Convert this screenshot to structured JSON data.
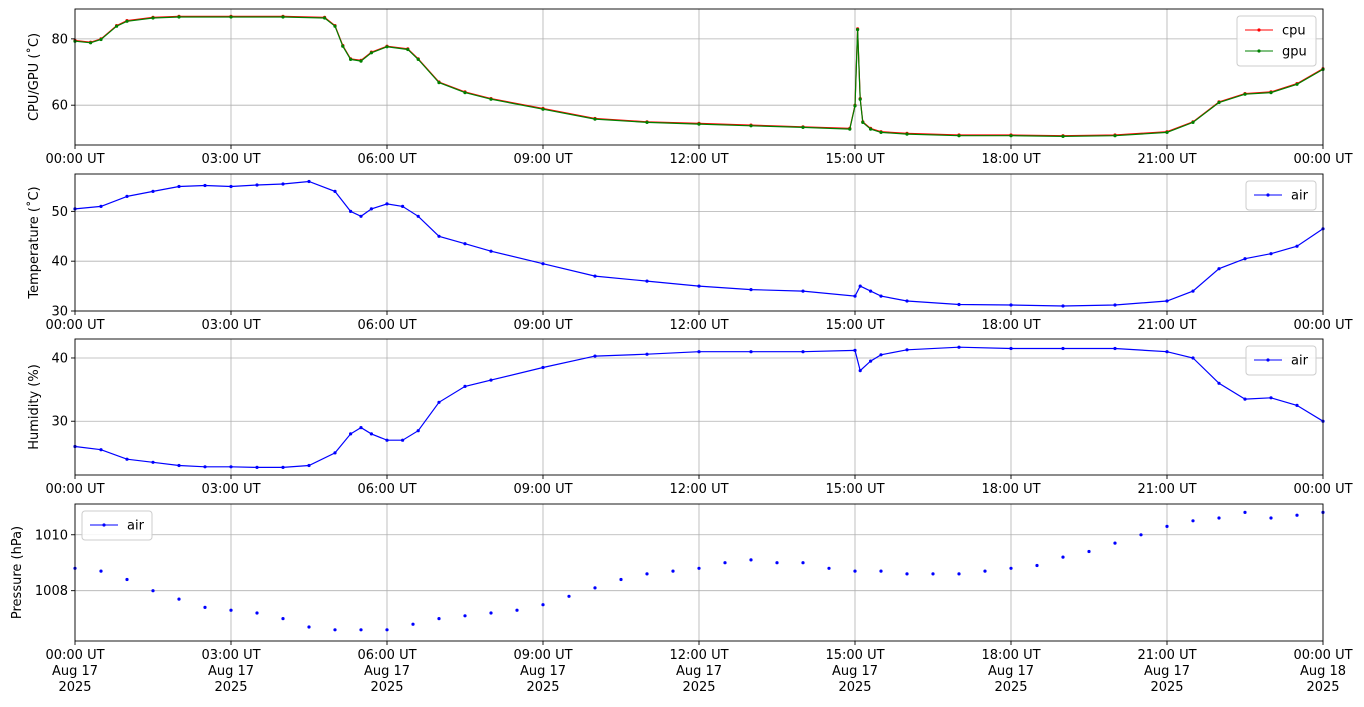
{
  "figure": {
    "x_axis": {
      "range_hours": [
        0,
        24
      ],
      "tick_hours": [
        0,
        3,
        6,
        9,
        12,
        15,
        18,
        21,
        24
      ],
      "tick_labels": [
        "00:00 UT",
        "03:00 UT",
        "06:00 UT",
        "09:00 UT",
        "12:00 UT",
        "15:00 UT",
        "18:00 UT",
        "21:00 UT",
        "00:00 UT"
      ],
      "bottom_date_lines": [
        "Aug 17",
        "Aug 17",
        "Aug 17",
        "Aug 17",
        "Aug 17",
        "Aug 17",
        "Aug 17",
        "Aug 17",
        "Aug 18"
      ],
      "bottom_year_lines": [
        "2025",
        "2025",
        "2025",
        "2025",
        "2025",
        "2025",
        "2025",
        "2025",
        "2025"
      ]
    }
  },
  "chart_data": [
    {
      "type": "line",
      "ylabel": "CPU/GPU (˚C)",
      "ylim": [
        48,
        89
      ],
      "yticks": [
        60,
        80
      ],
      "ytick_labels": [
        "60",
        "80"
      ],
      "grid": true,
      "legend": "top-right",
      "x_unit": "hours since 00:00 UT Aug 17 2025",
      "series": [
        {
          "name": "cpu",
          "color": "#ff0000",
          "x": [
            0,
            0.3,
            0.5,
            0.8,
            1.0,
            1.5,
            2.0,
            3.0,
            4.0,
            4.8,
            5.0,
            5.15,
            5.3,
            5.5,
            5.7,
            6.0,
            6.4,
            6.6,
            7.0,
            7.5,
            8.0,
            9.0,
            10.0,
            11.0,
            12.0,
            13.0,
            14.0,
            14.9,
            15.0,
            15.05,
            15.1,
            15.15,
            15.3,
            15.5,
            16.0,
            17.0,
            18.0,
            19.0,
            20.0,
            21.0,
            21.5,
            22.0,
            22.5,
            23.0,
            23.5,
            24.0
          ],
          "values": [
            79.5,
            79,
            80,
            84,
            85.5,
            86.5,
            86.8,
            86.8,
            86.8,
            86.5,
            84,
            78,
            74,
            73.5,
            76,
            77.8,
            77,
            74,
            67,
            64,
            62,
            59,
            56,
            55,
            54.5,
            54,
            53.5,
            53,
            60,
            83,
            62,
            55,
            53,
            52,
            51.5,
            51,
            51,
            50.8,
            51,
            52,
            55,
            61,
            63.5,
            64,
            66.5,
            71
          ]
        },
        {
          "name": "gpu",
          "color": "#008000",
          "x": [
            0,
            0.3,
            0.5,
            0.8,
            1.0,
            1.5,
            2.0,
            3.0,
            4.0,
            4.8,
            5.0,
            5.15,
            5.3,
            5.5,
            5.7,
            6.0,
            6.4,
            6.6,
            7.0,
            7.5,
            8.0,
            9.0,
            10.0,
            11.0,
            12.0,
            13.0,
            14.0,
            14.9,
            15.0,
            15.05,
            15.1,
            15.15,
            15.3,
            15.5,
            16.0,
            17.0,
            18.0,
            19.0,
            20.0,
            21.0,
            21.5,
            22.0,
            22.5,
            23.0,
            23.5,
            24.0
          ],
          "values": [
            79.3,
            78.8,
            79.8,
            83.8,
            85.3,
            86.3,
            86.6,
            86.6,
            86.6,
            86.3,
            83.8,
            77.8,
            73.8,
            73.3,
            75.8,
            77.6,
            76.8,
            73.8,
            66.8,
            63.8,
            61.8,
            58.8,
            55.8,
            54.8,
            54.3,
            53.8,
            53.3,
            52.8,
            59.8,
            82.8,
            61.8,
            54.8,
            52.8,
            51.8,
            51.3,
            50.8,
            50.8,
            50.6,
            50.8,
            51.8,
            54.8,
            60.8,
            63.3,
            63.8,
            66.3,
            70.8
          ]
        }
      ]
    },
    {
      "type": "line",
      "ylabel": "Temperature (˚C)",
      "ylim": [
        30,
        57.5
      ],
      "yticks": [
        30,
        40,
        50
      ],
      "ytick_labels": [
        "30",
        "40",
        "50"
      ],
      "grid": true,
      "legend": "top-right",
      "x_unit": "hours since 00:00 UT Aug 17 2025",
      "series": [
        {
          "name": "air",
          "color": "#0000ff",
          "x": [
            0,
            0.5,
            1.0,
            1.5,
            2.0,
            2.5,
            3.0,
            3.5,
            4.0,
            4.5,
            5.0,
            5.3,
            5.5,
            5.7,
            6.0,
            6.3,
            6.6,
            7.0,
            7.5,
            8.0,
            9.0,
            10.0,
            11.0,
            12.0,
            13.0,
            14.0,
            15.0,
            15.1,
            15.3,
            15.5,
            16.0,
            17.0,
            18.0,
            19.0,
            20.0,
            21.0,
            21.5,
            22.0,
            22.5,
            23.0,
            23.5,
            24.0
          ],
          "values": [
            50.5,
            51,
            53,
            54,
            55,
            55.2,
            55,
            55.3,
            55.5,
            56,
            54,
            50,
            49,
            50.5,
            51.5,
            51,
            49,
            45,
            43.5,
            42,
            39.5,
            37,
            36,
            35,
            34.3,
            34,
            33,
            35,
            34,
            33,
            32,
            31.3,
            31.2,
            31,
            31.2,
            32,
            34,
            38.5,
            40.5,
            41.5,
            43,
            46.5
          ]
        }
      ]
    },
    {
      "type": "line",
      "ylabel": "Humidity (%)",
      "ylim": [
        21.5,
        43
      ],
      "yticks": [
        30,
        40
      ],
      "ytick_labels": [
        "30",
        "40"
      ],
      "grid": true,
      "legend": "top-right",
      "x_unit": "hours since 00:00 UT Aug 17 2025",
      "series": [
        {
          "name": "air",
          "color": "#0000ff",
          "x": [
            0,
            0.5,
            1.0,
            1.5,
            2.0,
            2.5,
            3.0,
            3.5,
            4.0,
            4.5,
            5.0,
            5.3,
            5.5,
            5.7,
            6.0,
            6.3,
            6.6,
            7.0,
            7.5,
            8.0,
            9.0,
            10.0,
            11.0,
            12.0,
            13.0,
            14.0,
            15.0,
            15.1,
            15.3,
            15.5,
            16.0,
            17.0,
            18.0,
            19.0,
            20.0,
            21.0,
            21.5,
            22.0,
            22.5,
            23.0,
            23.5,
            24.0
          ],
          "values": [
            26,
            25.5,
            24,
            23.5,
            23,
            22.8,
            22.8,
            22.7,
            22.7,
            23,
            25,
            28,
            29,
            28,
            27,
            27,
            28.5,
            33,
            35.5,
            36.5,
            38.5,
            40.3,
            40.6,
            41,
            41,
            41,
            41.2,
            38,
            39.5,
            40.5,
            41.3,
            41.7,
            41.5,
            41.5,
            41.5,
            41,
            40,
            36,
            33.5,
            33.7,
            32.5,
            30
          ]
        }
      ]
    },
    {
      "type": "scatter",
      "ylabel": "Pressure (hPa)",
      "ylim": [
        1006.2,
        1011.1
      ],
      "yticks": [
        1008,
        1010
      ],
      "ytick_labels": [
        "1008",
        "1010"
      ],
      "grid": true,
      "legend": "top-left",
      "x_unit": "hours since 00:00 UT Aug 17 2025",
      "series": [
        {
          "name": "air",
          "color": "#0000ff",
          "x": [
            0,
            0.5,
            1.0,
            1.5,
            2.0,
            2.5,
            3.0,
            3.5,
            4.0,
            4.5,
            5.0,
            5.5,
            6.0,
            6.5,
            7.0,
            7.5,
            8.0,
            8.5,
            9.0,
            9.5,
            10.0,
            10.5,
            11.0,
            11.5,
            12.0,
            12.5,
            13.0,
            13.5,
            14.0,
            14.5,
            15.0,
            15.5,
            16.0,
            16.5,
            17.0,
            17.5,
            18.0,
            18.5,
            19.0,
            19.5,
            20.0,
            20.5,
            21.0,
            21.5,
            22.0,
            22.5,
            23.0,
            23.5,
            24.0
          ],
          "values": [
            1008.8,
            1008.7,
            1008.4,
            1008.0,
            1007.7,
            1007.4,
            1007.3,
            1007.2,
            1007.0,
            1006.7,
            1006.6,
            1006.6,
            1006.6,
            1006.8,
            1007.0,
            1007.1,
            1007.2,
            1007.3,
            1007.5,
            1007.8,
            1008.1,
            1008.4,
            1008.6,
            1008.7,
            1008.8,
            1009.0,
            1009.1,
            1009.0,
            1009.0,
            1008.8,
            1008.7,
            1008.7,
            1008.6,
            1008.6,
            1008.6,
            1008.7,
            1008.8,
            1008.9,
            1009.2,
            1009.4,
            1009.7,
            1010.0,
            1010.3,
            1010.5,
            1010.6,
            1010.8,
            1010.6,
            1010.7,
            1010.8
          ]
        }
      ]
    }
  ]
}
